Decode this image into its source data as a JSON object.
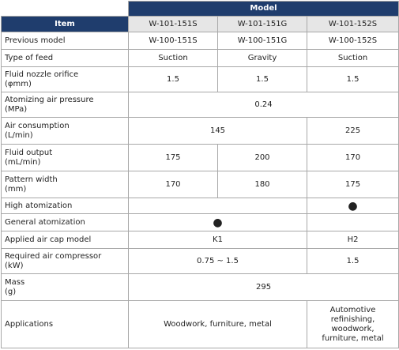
{
  "header": {
    "group": "Model",
    "item": "Item",
    "models": [
      "W-101-151S",
      "W-101-151G",
      "W-101-152S"
    ]
  },
  "rows": [
    {
      "label": "Previous model",
      "values": [
        "W-100-151S",
        "W-100-151G",
        "W-100-152S"
      ]
    },
    {
      "label": "Type of feed",
      "values": [
        "Suction",
        "Gravity",
        "Suction"
      ]
    },
    {
      "label": "Fluid nozzle orifice\n(φmm)",
      "values": [
        "1.5",
        "1.5",
        "1.5"
      ]
    },
    {
      "label": "Atomizing air pressure\n(MPa)",
      "values": [
        "0.24"
      ]
    },
    {
      "label": "Air consumption\n(L/min)",
      "values": [
        "145",
        "225"
      ]
    },
    {
      "label": "Fluid output\n(mL/min)",
      "values": [
        "175",
        "200",
        "170"
      ]
    },
    {
      "label": "Pattern width\n(mm)",
      "values": [
        "170",
        "180",
        "175"
      ]
    },
    {
      "label": "High atomization",
      "values": [
        "●"
      ]
    },
    {
      "label": "General atomization",
      "values": [
        "●"
      ]
    },
    {
      "label": "Applied air cap model",
      "values": [
        "K1",
        "H2"
      ]
    },
    {
      "label": "Required air compressor\n(kW)",
      "values": [
        "0.75 ~ 1.5",
        "1.5"
      ]
    },
    {
      "label": "Mass\n(g)",
      "values": [
        "295"
      ]
    },
    {
      "label": "Applications",
      "values": [
        "Woodwork, furniture, metal",
        "Automotive\nrefinishing,\nwoodwork,\nfurniture, metal"
      ]
    }
  ]
}
